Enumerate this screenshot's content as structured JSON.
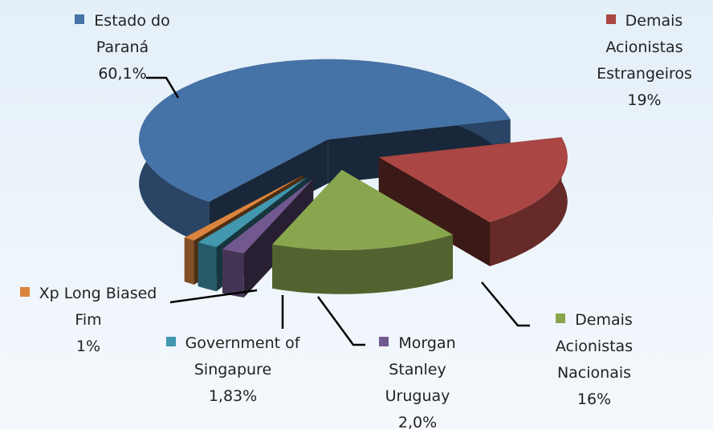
{
  "chart_data": {
    "type": "pie3d",
    "categories": [
      "Estado do Paraná",
      "Demais Acionistas Estrangeiros",
      "Demais Acionistas Nacionais",
      "Morgan Stanley Uruguay",
      "Government of Singapure",
      "Xp Long Biased Fim"
    ],
    "values": [
      60.1,
      19,
      16,
      2.0,
      1.83,
      1
    ],
    "value_labels": [
      "60,1%",
      "19%",
      "16%",
      "2,0%",
      "1,83%",
      "1%"
    ],
    "colors": [
      "#4572a7",
      "#aa4643",
      "#89a54e",
      "#71588f",
      "#4198af",
      "#db843d"
    ]
  }
}
